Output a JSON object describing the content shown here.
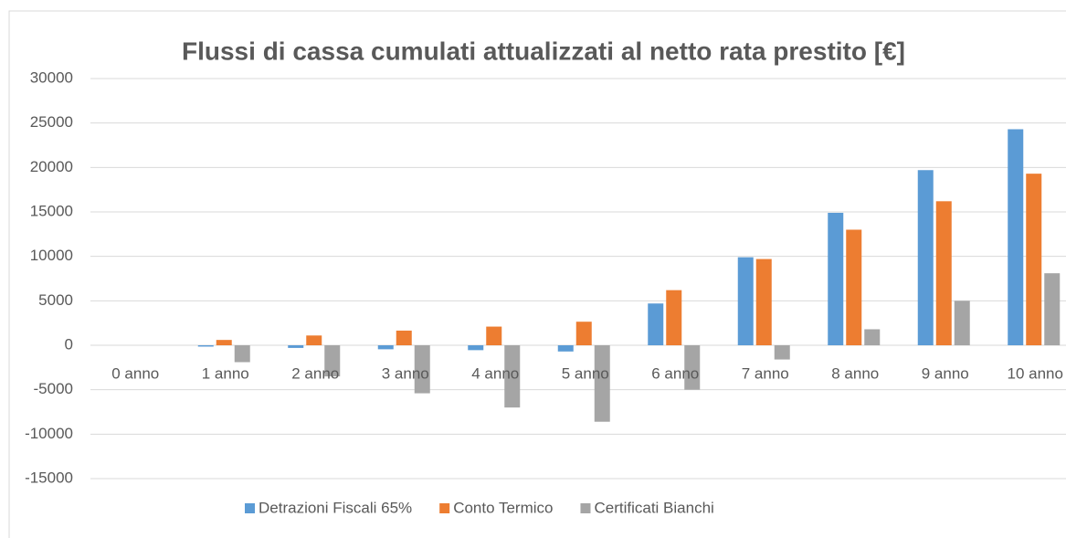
{
  "chart_data": {
    "type": "bar",
    "title": "Flussi di cassa cumulati attualizzati al netto rata prestito [€]",
    "categories": [
      "0 anno",
      "1 anno",
      "2 anno",
      "3 anno",
      "4 anno",
      "5 anno",
      "6 anno",
      "7 anno",
      "8 anno",
      "9 anno",
      "10 anno"
    ],
    "series": [
      {
        "name": "Detrazioni Fiscali 65%",
        "color": "#5b9bd5",
        "values": [
          0,
          -150,
          -300,
          -450,
          -550,
          -700,
          4700,
          9900,
          14900,
          19700,
          24300
        ]
      },
      {
        "name": "Conto Termico",
        "color": "#ed7d31",
        "values": [
          0,
          600,
          1100,
          1650,
          2100,
          2650,
          6200,
          9700,
          13000,
          16200,
          19300
        ]
      },
      {
        "name": "Certificati Bianchi",
        "color": "#a5a5a5",
        "values": [
          0,
          -1900,
          -3500,
          -5400,
          -7000,
          -8600,
          -5000,
          -1600,
          1800,
          5000,
          8100
        ]
      }
    ],
    "ylim": [
      -15000,
      30000
    ],
    "yticks": [
      -15000,
      -10000,
      -5000,
      0,
      5000,
      10000,
      15000,
      20000,
      25000,
      30000
    ],
    "grid": true,
    "legend": "bottom"
  }
}
